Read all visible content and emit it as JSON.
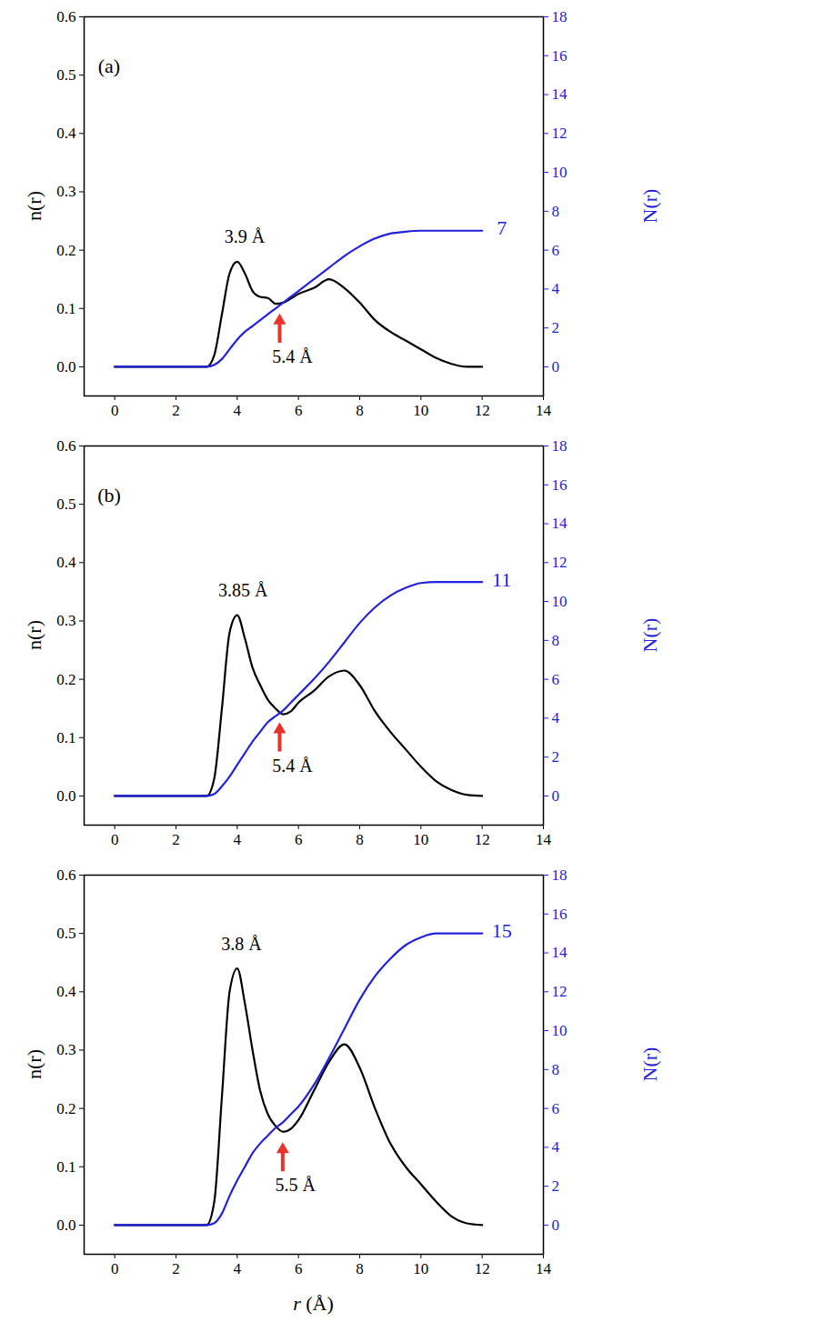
{
  "chart_data": [
    {
      "type": "line",
      "panel_label": "(a)",
      "ylabel": "n(r)",
      "y2label": "N(r)",
      "xlim": [
        -1,
        14
      ],
      "xticks": [
        0,
        2,
        4,
        6,
        8,
        10,
        12,
        14
      ],
      "ylim": [
        -0.05,
        0.6
      ],
      "yticks": [
        {
          "value": 0,
          "label": "0.0"
        },
        {
          "value": 0.1,
          "label": "0.1"
        },
        {
          "value": 0.2,
          "label": "0.2"
        },
        {
          "value": 0.3,
          "label": "0.3"
        },
        {
          "value": 0.4,
          "label": "0.4"
        },
        {
          "value": 0.5,
          "label": "0.5"
        },
        {
          "value": 0.6,
          "label": "0.6"
        }
      ],
      "y2lim": [
        -1.5,
        18
      ],
      "y2ticks": [
        0,
        2,
        4,
        6,
        8,
        10,
        12,
        14,
        16,
        18
      ],
      "x": [
        0,
        1,
        2,
        3,
        3.25,
        3.5,
        3.75,
        4,
        4.25,
        4.5,
        4.75,
        5,
        5.25,
        5.5,
        5.75,
        6,
        6.5,
        7,
        7.5,
        8,
        8.5,
        9,
        9.5,
        10,
        10.5,
        11,
        11.5,
        12
      ],
      "series": [
        {
          "name": "n(r)",
          "color": "#000000",
          "values": [
            0,
            0,
            0,
            0,
            0.02,
            0.09,
            0.16,
            0.18,
            0.16,
            0.13,
            0.12,
            0.118,
            0.108,
            0.11,
            0.117,
            0.125,
            0.135,
            0.15,
            0.135,
            0.11,
            0.08,
            0.06,
            0.045,
            0.03,
            0.015,
            0.005,
            0,
            0
          ]
        },
        {
          "name": "N(r)",
          "color": "#2222dd",
          "axis": "y2",
          "end_label": 7,
          "values": [
            0,
            0,
            0,
            0,
            0.1,
            0.4,
            0.9,
            1.4,
            1.8,
            2.1,
            2.4,
            2.7,
            3.0,
            3.3,
            3.6,
            3.9,
            4.5,
            5.1,
            5.7,
            6.2,
            6.6,
            6.85,
            6.95,
            7,
            7,
            7,
            7,
            7
          ]
        }
      ],
      "peak_label": {
        "x": 3.9,
        "text": "3.9 Å"
      },
      "minimum_label": {
        "x": 5.4,
        "text": "5.4 Å"
      }
    },
    {
      "type": "line",
      "panel_label": "(b)",
      "ylabel": "n(r)",
      "y2label": "N(r)",
      "xlim": [
        -1,
        14
      ],
      "xticks": [
        0,
        2,
        4,
        6,
        8,
        10,
        12,
        14
      ],
      "ylim": [
        -0.05,
        0.6
      ],
      "yticks": [
        {
          "value": 0,
          "label": "0.0"
        },
        {
          "value": 0.1,
          "label": "0.1"
        },
        {
          "value": 0.2,
          "label": "0.2"
        },
        {
          "value": 0.3,
          "label": "0.3"
        },
        {
          "value": 0.4,
          "label": "0.4"
        },
        {
          "value": 0.5,
          "label": "0.5"
        },
        {
          "value": 0.6,
          "label": "0.6"
        }
      ],
      "y2lim": [
        -1.5,
        18
      ],
      "y2ticks": [
        0,
        2,
        4,
        6,
        8,
        10,
        12,
        14,
        16,
        18
      ],
      "x": [
        0,
        1,
        2,
        3,
        3.25,
        3.5,
        3.75,
        4,
        4.25,
        4.5,
        4.75,
        5,
        5.25,
        5.5,
        5.75,
        6,
        6.5,
        7,
        7.5,
        8,
        8.5,
        9,
        9.5,
        10,
        10.5,
        11,
        11.5,
        12
      ],
      "series": [
        {
          "name": "n(r)",
          "color": "#000000",
          "values": [
            0,
            0,
            0,
            0,
            0.03,
            0.15,
            0.28,
            0.31,
            0.27,
            0.22,
            0.19,
            0.165,
            0.15,
            0.14,
            0.145,
            0.16,
            0.18,
            0.205,
            0.215,
            0.19,
            0.145,
            0.11,
            0.08,
            0.05,
            0.025,
            0.01,
            0.002,
            0
          ]
        },
        {
          "name": "N(r)",
          "color": "#2222dd",
          "axis": "y2",
          "end_label": 11,
          "values": [
            0,
            0,
            0,
            0,
            0.1,
            0.5,
            1.0,
            1.6,
            2.2,
            2.8,
            3.3,
            3.8,
            4.1,
            4.4,
            4.8,
            5.2,
            6.0,
            6.9,
            7.9,
            8.9,
            9.7,
            10.3,
            10.7,
            10.95,
            11,
            11,
            11,
            11
          ]
        }
      ],
      "peak_label": {
        "x": 3.85,
        "text": "3.85 Å"
      },
      "minimum_label": {
        "x": 5.4,
        "text": "5.4 Å"
      }
    },
    {
      "type": "line",
      "ylabel": "n(r)",
      "y2label": "N(r)",
      "xlabel": "r (Å)",
      "xlim": [
        -1,
        14
      ],
      "xticks": [
        0,
        2,
        4,
        6,
        8,
        10,
        12,
        14
      ],
      "ylim": [
        -0.05,
        0.6
      ],
      "yticks": [
        {
          "value": 0,
          "label": "0.0"
        },
        {
          "value": 0.1,
          "label": "0.1"
        },
        {
          "value": 0.2,
          "label": "0.2"
        },
        {
          "value": 0.3,
          "label": "0.3"
        },
        {
          "value": 0.4,
          "label": "0.4"
        },
        {
          "value": 0.5,
          "label": "0.5"
        },
        {
          "value": 0.6,
          "label": "0.6"
        }
      ],
      "y2lim": [
        -1.5,
        18
      ],
      "y2ticks": [
        0,
        2,
        4,
        6,
        8,
        10,
        12,
        14,
        16,
        18
      ],
      "x": [
        0,
        1,
        2,
        3,
        3.25,
        3.5,
        3.75,
        4,
        4.25,
        4.5,
        4.75,
        5,
        5.25,
        5.5,
        5.75,
        6,
        6.5,
        7,
        7.5,
        8,
        8.5,
        9,
        9.5,
        10,
        10.5,
        11,
        11.5,
        12
      ],
      "series": [
        {
          "name": "n(r)",
          "color": "#000000",
          "values": [
            0,
            0,
            0,
            0,
            0.04,
            0.22,
            0.4,
            0.44,
            0.38,
            0.3,
            0.23,
            0.19,
            0.17,
            0.16,
            0.165,
            0.18,
            0.23,
            0.28,
            0.31,
            0.27,
            0.2,
            0.14,
            0.1,
            0.07,
            0.04,
            0.015,
            0.003,
            0
          ]
        },
        {
          "name": "N(r)",
          "color": "#2222dd",
          "axis": "y2",
          "end_label": 15,
          "values": [
            0,
            0,
            0,
            0,
            0.1,
            0.6,
            1.5,
            2.3,
            3.0,
            3.7,
            4.2,
            4.6,
            5.0,
            5.3,
            5.7,
            6.1,
            7.2,
            8.6,
            10.1,
            11.6,
            12.8,
            13.7,
            14.4,
            14.8,
            15,
            15,
            15,
            15
          ]
        }
      ],
      "peak_label": {
        "x": 3.8,
        "text": "3.8 Å"
      },
      "minimum_label": {
        "x": 5.5,
        "text": "5.5 Å"
      }
    }
  ]
}
